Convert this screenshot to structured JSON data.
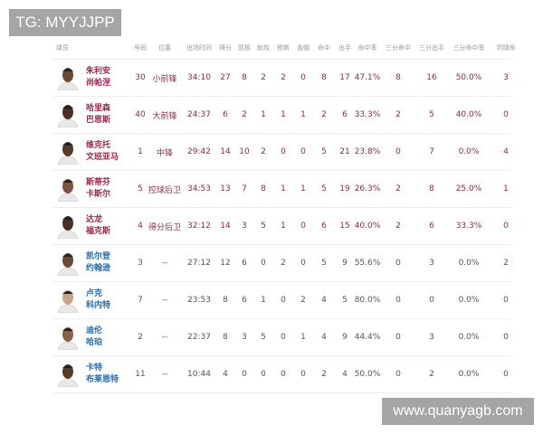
{
  "watermarks": {
    "top": "TG: MYYJJPP",
    "bottom": "www.quanyagb.com"
  },
  "colors": {
    "starter_text": "#8a2a4a",
    "bench_name": "#2a6aa8",
    "watermark_bg": "#a5a5a5"
  },
  "headers": [
    "球员",
    "号码",
    "位置",
    "出场时间",
    "得分",
    "篮板",
    "助攻",
    "抢断",
    "盖帽",
    "命中",
    "出手",
    "命中率",
    "三分命中",
    "三分出手",
    "三分命中率",
    "罚球命"
  ],
  "players": [
    {
      "name1": "朱利安",
      "name2": "尚帕涅",
      "starter": true,
      "skin": "#6b4a36",
      "stats": [
        "30",
        "小前锋",
        "34:10",
        "27",
        "8",
        "2",
        "2",
        "0",
        "8",
        "17",
        "47.1%",
        "8",
        "16",
        "50.0%",
        "3"
      ]
    },
    {
      "name1": "哈里森",
      "name2": "巴恩斯",
      "starter": true,
      "skin": "#4a3024",
      "stats": [
        "40",
        "大前锋",
        "24:37",
        "6",
        "2",
        "1",
        "1",
        "1",
        "2",
        "6",
        "33.3%",
        "2",
        "5",
        "40.0%",
        "0"
      ]
    },
    {
      "name1": "维克托",
      "name2": "文班亚马",
      "starter": true,
      "skin": "#5a3a2a",
      "stats": [
        "1",
        "中锋",
        "29:42",
        "14",
        "10",
        "2",
        "0",
        "0",
        "5",
        "21",
        "23.8%",
        "0",
        "7",
        "0.0%",
        "4"
      ]
    },
    {
      "name1": "斯蒂芬",
      "name2": "卡斯尔",
      "starter": true,
      "skin": "#7a5440",
      "stats": [
        "5",
        "控球后卫",
        "34:53",
        "13",
        "7",
        "8",
        "1",
        "1",
        "5",
        "19",
        "26.3%",
        "2",
        "8",
        "25.0%",
        "1"
      ]
    },
    {
      "name1": "达龙",
      "name2": "福克斯",
      "starter": true,
      "skin": "#4a3024",
      "stats": [
        "4",
        "得分后卫",
        "32:12",
        "14",
        "3",
        "5",
        "1",
        "0",
        "6",
        "15",
        "40.0%",
        "2",
        "6",
        "33.3%",
        "0"
      ]
    },
    {
      "name1": "凯尔登",
      "name2": "约翰逊",
      "starter": false,
      "skin": "#6b4a36",
      "stats": [
        "3",
        "--",
        "27:12",
        "12",
        "6",
        "0",
        "2",
        "0",
        "5",
        "9",
        "55.6%",
        "0",
        "3",
        "0.0%",
        "2"
      ]
    },
    {
      "name1": "卢克",
      "name2": "科内特",
      "starter": false,
      "skin": "#c9a48a",
      "stats": [
        "7",
        "--",
        "23:53",
        "8",
        "6",
        "1",
        "0",
        "2",
        "4",
        "5",
        "80.0%",
        "0",
        "0",
        "0.0%",
        "0"
      ]
    },
    {
      "name1": "迪伦",
      "name2": "哈珀",
      "starter": false,
      "skin": "#8a6048",
      "stats": [
        "2",
        "--",
        "22:37",
        "8",
        "3",
        "5",
        "0",
        "1",
        "4",
        "9",
        "44.4%",
        "0",
        "3",
        "0.0%",
        "0"
      ]
    },
    {
      "name1": "卡特",
      "name2": "布莱恩特",
      "starter": false,
      "skin": "#5a3a2a",
      "stats": [
        "11",
        "--",
        "10:44",
        "4",
        "0",
        "0",
        "0",
        "0",
        "2",
        "4",
        "50.0%",
        "0",
        "2",
        "0.0%",
        "0"
      ]
    }
  ]
}
